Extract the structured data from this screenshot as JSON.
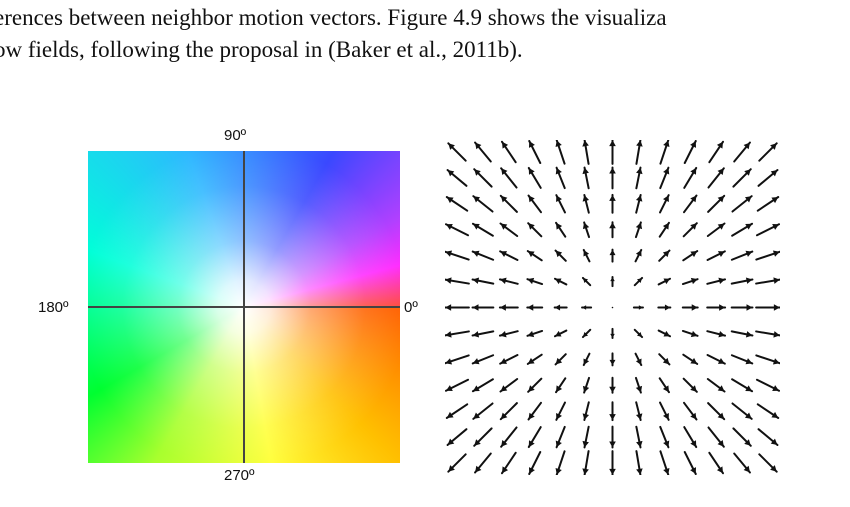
{
  "text": {
    "line1": "erences between neighbor motion vectors. Figure 4.9 shows the visualiza",
    "line2": "ow fields, following the proposal in (Baker et al., 2011b)."
  },
  "color_wheel": {
    "label_top": "90º",
    "label_left": "180º",
    "label_right": "0º",
    "label_bottom": "270º",
    "axis_color": "#444444"
  },
  "vector_field": {
    "grid_size": 13,
    "arrow_color": "#111111",
    "pattern": "radial-outward"
  }
}
